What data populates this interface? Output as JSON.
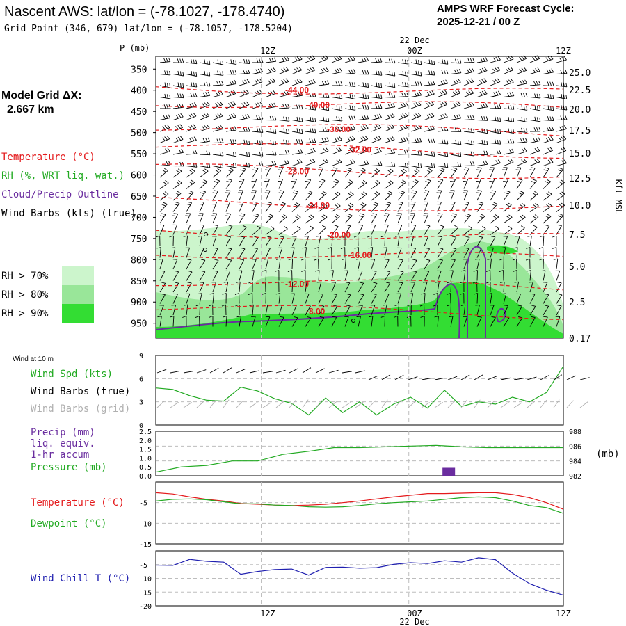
{
  "header": {
    "title": "Nascent AWS:  lat/lon = (-78.1027, -178.4740)",
    "subtitle": "Grid Point (346, 679) lat/lon = (-78.1057, -178.5204)",
    "cycle_line1": "AMPS WRF Forecast Cycle:",
    "cycle_line2": "2025-12-21 / 00  Z"
  },
  "time_axis": {
    "date_label": "22 Dec",
    "ticks": [
      "12Z",
      "00Z",
      "12Z"
    ],
    "grid_fractions": [
      0.2586,
      0.6207
    ]
  },
  "left_panel": {
    "model_grid_label": "Model Grid ΔX:",
    "model_grid_value": "2.667 km",
    "legend": [
      {
        "text": "Temperature (°C)",
        "color": "#e41a1c"
      },
      {
        "text": "RH (%, WRT liq. wat.)",
        "color": "#22aa22"
      },
      {
        "text": "Cloud/Precip Outline",
        "color": "#6a2d9f"
      },
      {
        "text": "Wind Barbs (kts) (true)",
        "color": "#000000"
      }
    ],
    "rh_legend": [
      {
        "text": "RH > 70%",
        "color": "#ccf5cc"
      },
      {
        "text": "RH > 80%",
        "color": "#99e699"
      },
      {
        "text": "RH > 90%",
        "color": "#33dd33"
      }
    ]
  },
  "cross_section": {
    "p_axis_title": "P (mb)",
    "p_ticks": [
      "350",
      "400",
      "450",
      "500",
      "550",
      "600",
      "650",
      "700",
      "750",
      "800",
      "850",
      "900",
      "950"
    ],
    "height_axis_title": "Kft MSL",
    "height_ticks": [
      "25.0",
      "22.5",
      "20.0",
      "17.5",
      "15.0",
      "12.5",
      "10.0",
      "7.5",
      "5.0",
      "2.5",
      "0.17"
    ],
    "isotherms": [
      {
        "label": "-44.00",
        "p": 400
      },
      {
        "label": "-40.00",
        "p": 435
      },
      {
        "label": "-36.00",
        "p": 492
      },
      {
        "label": "-32.00",
        "p": 541
      },
      {
        "label": "-28.00",
        "p": 592
      },
      {
        "label": "-24.00",
        "p": 672
      },
      {
        "label": "-20.00",
        "p": 742
      },
      {
        "label": "-16.00",
        "p": 790
      },
      {
        "label": "-12.00",
        "p": 858
      },
      {
        "label": "-8.00",
        "p": 922
      }
    ]
  },
  "wind_panel": {
    "header_label": "Wind at 10 m",
    "labels": [
      {
        "text": "Wind Spd (kts)",
        "color": "#22aa22"
      },
      {
        "text": "Wind Barbs (true)",
        "color": "#000000"
      },
      {
        "text": "Wind Barbs (grid)",
        "color": "#b0b0b0"
      }
    ],
    "y_ticks": [
      "9",
      "6",
      "3",
      "0"
    ]
  },
  "precip_panel": {
    "labels": [
      {
        "text": "Precip (mm)",
        "color": "#6a2d9f"
      },
      {
        "text": "liq. equiv.",
        "color": "#6a2d9f"
      },
      {
        "text": "1-hr accum",
        "color": "#6a2d9f"
      },
      {
        "text": "Pressure (mb)",
        "color": "#22aa22"
      }
    ],
    "left_ticks": [
      "2.5",
      "2.0",
      "1.5",
      "1.0",
      "0.5",
      "0.0"
    ],
    "right_ticks": [
      "988",
      "986",
      "984",
      "982"
    ],
    "right_unit": "(mb)"
  },
  "temp_panel": {
    "labels": [
      {
        "text": "Temperature (°C)",
        "color": "#e41a1c"
      },
      {
        "text": "Dewpoint (°C)",
        "color": "#22aa22"
      }
    ],
    "y_ticks": [
      "-5",
      "-10",
      "-15"
    ]
  },
  "chill_panel": {
    "labels": [
      {
        "text": "Wind Chill T (°C)",
        "color": "#2020b0"
      }
    ],
    "y_ticks": [
      "-5",
      "-10",
      "-15",
      "-20"
    ]
  },
  "bottom_axis": {
    "ticks": [
      "12Z",
      "00Z",
      "12Z"
    ],
    "date_label": "22 Dec"
  },
  "chart_data": [
    {
      "type": "line",
      "title": "Wind Spd (kts)",
      "x_hours": [
        0,
        2,
        4,
        6,
        8,
        10,
        12,
        14,
        16,
        18,
        20,
        22,
        24,
        26,
        28,
        30,
        32,
        34,
        36,
        38,
        40,
        42,
        44,
        46,
        48
      ],
      "series": [
        {
          "name": "Wind Spd (kts)",
          "color": "#22aa22",
          "values": [
            4.8,
            4.6,
            3.8,
            3.2,
            3.1,
            4.9,
            4.4,
            3.4,
            2.8,
            1.3,
            3.5,
            1.6,
            3.0,
            1.3,
            2.7,
            3.6,
            2.2,
            4.5,
            2.4,
            3.0,
            2.7,
            3.6,
            3.0,
            4.2,
            7.6
          ]
        }
      ],
      "ylim": [
        0,
        9
      ]
    },
    {
      "type": "line",
      "title": "Pressure (mb)",
      "x_hours": [
        0,
        3,
        6,
        9,
        12,
        15,
        18,
        21,
        24,
        27,
        30,
        33,
        36,
        39,
        42,
        45,
        48
      ],
      "series": [
        {
          "name": "Pressure (mb)",
          "color": "#22aa22",
          "values": [
            982.5,
            983.2,
            983.4,
            984.0,
            984.0,
            984.9,
            985.3,
            985.8,
            985.8,
            985.9,
            986.0,
            986.1,
            985.9,
            985.8,
            985.8,
            985.8,
            985.8
          ]
        }
      ],
      "ylim": [
        982,
        988
      ]
    },
    {
      "type": "bar",
      "title": "Precip (mm) 1-hr accum",
      "x_hours": [
        34.5
      ],
      "values": [
        0.45
      ],
      "ylim": [
        0,
        2.5
      ]
    },
    {
      "type": "line",
      "title": "Temperature / Dewpoint",
      "x_hours": [
        0,
        2,
        4,
        6,
        8,
        10,
        12,
        14,
        16,
        18,
        20,
        22,
        24,
        26,
        28,
        30,
        32,
        34,
        36,
        38,
        40,
        42,
        44,
        46,
        48
      ],
      "series": [
        {
          "name": "Temperature (°C)",
          "color": "#e41a1c",
          "values": [
            -2.6,
            -2.9,
            -3.6,
            -4.2,
            -4.6,
            -5.2,
            -5.4,
            -5.6,
            -5.7,
            -5.6,
            -5.4,
            -5.0,
            -4.6,
            -4.1,
            -3.6,
            -3.2,
            -2.8,
            -2.8,
            -2.7,
            -2.6,
            -2.6,
            -3.0,
            -3.8,
            -5.0,
            -6.6
          ]
        },
        {
          "name": "Dewpoint (°C)",
          "color": "#22aa22",
          "values": [
            -4.6,
            -4.2,
            -4.1,
            -4.3,
            -4.8,
            -5.3,
            -5.3,
            -5.6,
            -5.7,
            -6.0,
            -6.1,
            -6.0,
            -5.7,
            -5.3,
            -5.0,
            -4.8,
            -4.6,
            -4.2,
            -3.8,
            -3.6,
            -3.8,
            -4.6,
            -5.7,
            -6.2,
            -7.6
          ]
        }
      ],
      "ylim": [
        -15,
        0
      ]
    },
    {
      "type": "line",
      "title": "Wind Chill T (°C)",
      "x_hours": [
        0,
        2,
        4,
        6,
        8,
        10,
        12,
        14,
        16,
        18,
        20,
        22,
        24,
        26,
        28,
        30,
        32,
        34,
        36,
        38,
        40,
        42,
        44,
        46,
        48
      ],
      "series": [
        {
          "name": "Wind Chill T (°C)",
          "color": "#2020b0",
          "values": [
            -5.2,
            -5.3,
            -3.1,
            -3.8,
            -4.1,
            -8.5,
            -7.5,
            -6.8,
            -6.6,
            -8.8,
            -6.0,
            -5.9,
            -6.3,
            -6.1,
            -4.9,
            -4.3,
            -4.6,
            -3.6,
            -4.1,
            -2.5,
            -3.2,
            -8.1,
            -11.9,
            -14.3,
            -16.1
          ]
        }
      ],
      "ylim": [
        -20,
        0
      ]
    }
  ]
}
